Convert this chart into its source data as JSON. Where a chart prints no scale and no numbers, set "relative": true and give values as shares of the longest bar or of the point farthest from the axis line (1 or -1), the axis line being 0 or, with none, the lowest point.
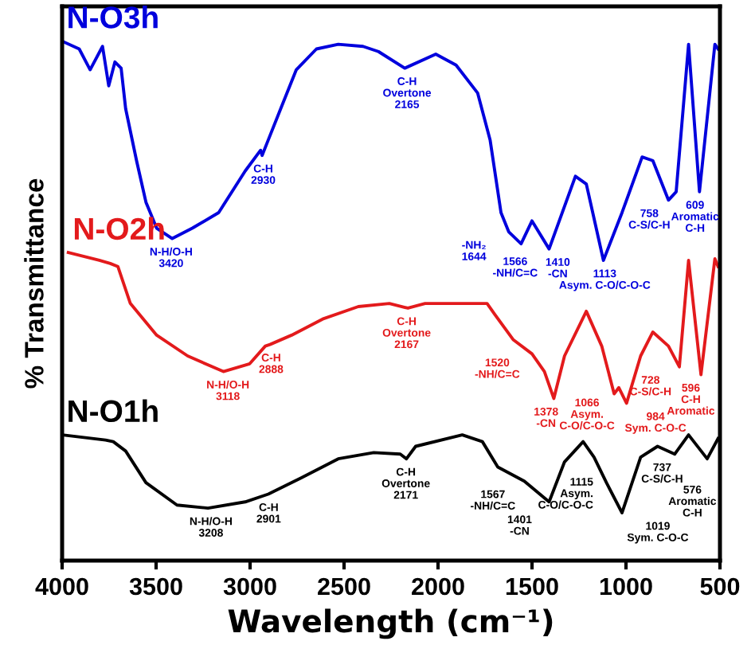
{
  "chart_data": {
    "type": "line",
    "relative": true,
    "xlabel": "Wavelength (cm⁻¹)",
    "ylabel": "% Transmittance",
    "xlim": [
      4000,
      500
    ],
    "xticks": [
      4000,
      3500,
      3000,
      2500,
      2000,
      1500,
      1000,
      500
    ],
    "legend": false,
    "grid": false,
    "marker": "none",
    "line_style": "solid",
    "series": [
      {
        "name": "N-O3h",
        "color": "#0000dd",
        "x": [
          4000,
          3909,
          3851,
          3785,
          3752,
          3719,
          3686,
          3662,
          3604,
          3554,
          3497,
          3414,
          3307,
          3167,
          3026,
          2944,
          2936,
          2903,
          2837,
          2754,
          2647,
          2531,
          2399,
          2317,
          2177,
          2012,
          1904,
          1789,
          1723,
          1665,
          1624,
          1558,
          1500,
          1409,
          1269,
          1211,
          1120,
          1021,
          914,
          857,
          774,
          733,
          667,
          609,
          527,
          510
        ],
        "values": [
          1.0,
          0.985,
          0.945,
          0.99,
          0.914,
          0.96,
          0.948,
          0.87,
          0.77,
          0.69,
          0.64,
          0.62,
          0.64,
          0.67,
          0.75,
          0.79,
          0.78,
          0.81,
          0.87,
          0.945,
          0.985,
          0.994,
          0.99,
          0.98,
          0.948,
          0.975,
          0.954,
          0.9,
          0.81,
          0.67,
          0.633,
          0.61,
          0.654,
          0.6,
          0.74,
          0.725,
          0.578,
          0.67,
          0.777,
          0.77,
          0.694,
          0.71,
          0.994,
          0.71,
          0.994,
          0.985
        ]
      },
      {
        "name": "N-O2h",
        "color": "#e31a1c",
        "x": [
          3967,
          3802,
          3744,
          3703,
          3637,
          3497,
          3332,
          3142,
          3002,
          2919,
          2894,
          2779,
          2614,
          2424,
          2259,
          2160,
          2069,
          1739,
          1698,
          1599,
          1500,
          1434,
          1384,
          1327,
          1211,
          1129,
          1063,
          1038,
          997,
          922,
          857,
          774,
          716,
          667,
          601,
          527,
          510
        ],
        "values": [
          0.593,
          0.578,
          0.572,
          0.566,
          0.495,
          0.434,
          0.394,
          0.364,
          0.379,
          0.413,
          0.416,
          0.434,
          0.465,
          0.489,
          0.495,
          0.486,
          0.495,
          0.495,
          0.474,
          0.425,
          0.398,
          0.364,
          0.312,
          0.394,
          0.48,
          0.413,
          0.321,
          0.333,
          0.303,
          0.394,
          0.44,
          0.413,
          0.373,
          0.578,
          0.358,
          0.581,
          0.566
        ]
      },
      {
        "name": "N-O1h",
        "color": "#000000",
        "x": [
          4000,
          3769,
          3728,
          3662,
          3554,
          3389,
          3224,
          3026,
          2903,
          2729,
          2531,
          2342,
          2201,
          2168,
          2119,
          1871,
          1764,
          1682,
          1541,
          1409,
          1327,
          1228,
          1170,
          1104,
          1021,
          922,
          832,
          741,
          667,
          568,
          510
        ],
        "values": [
          0.242,
          0.232,
          0.229,
          0.211,
          0.15,
          0.107,
          0.101,
          0.113,
          0.128,
          0.159,
          0.196,
          0.208,
          0.205,
          0.196,
          0.22,
          0.242,
          0.229,
          0.18,
          0.153,
          0.113,
          0.19,
          0.229,
          0.199,
          0.15,
          0.092,
          0.199,
          0.22,
          0.205,
          0.242,
          0.196,
          0.235
        ]
      }
    ],
    "annotations": [
      {
        "text": "N-H/O-H\n3420",
        "x": 3420,
        "y": 0.62
      },
      {
        "text": "C-H\n2930",
        "x": 2930,
        "y": 0.78
      },
      {
        "text": "C-H\nOvertone\n2165",
        "x": 2165,
        "y": 0.948
      },
      {
        "text": "-NH₂\n1644",
        "x": 1644,
        "y": 0.633
      },
      {
        "text": "1566\n-NH/C=C",
        "x": 1566,
        "y": 0.61
      },
      {
        "text": "1410\n-CN",
        "x": 1410,
        "y": 0.6
      },
      {
        "text": "1113\nAsym. C-O/C-O-C",
        "x": 1113,
        "y": 0.578
      },
      {
        "text": "758\nC-S/C-H",
        "x": 758,
        "y": 0.694
      },
      {
        "text": "609\nAromatic\nC-H",
        "x": 609,
        "y": 0.71
      },
      {
        "text": "N-H/O-H\n3118",
        "x": 3118,
        "y": 0.364
      },
      {
        "text": "C-H\n2888",
        "x": 2888,
        "y": 0.416
      },
      {
        "text": "C-H\nOvertone\n2167",
        "x": 2167,
        "y": 0.486
      },
      {
        "text": "1520\n-NH/C=C",
        "x": 1520,
        "y": 0.398
      },
      {
        "text": "1378\n-CN",
        "x": 1378,
        "y": 0.312
      },
      {
        "text": "1066\nAsym.\nC-O/C-O-C",
        "x": 1066,
        "y": 0.321
      },
      {
        "text": "984\nSym. C-O-C",
        "x": 984,
        "y": 0.303
      },
      {
        "text": "728\nC-S/C-H",
        "x": 728,
        "y": 0.373
      },
      {
        "text": "596\nC-H\nAromatic",
        "x": 596,
        "y": 0.358
      },
      {
        "text": "N-H/O-H\n3208",
        "x": 3208,
        "y": 0.101
      },
      {
        "text": "C-H\n2901",
        "x": 2901,
        "y": 0.128
      },
      {
        "text": "C-H\nOvertone\n2171",
        "x": 2171,
        "y": 0.196
      },
      {
        "text": "1567\n-NH/C=C",
        "x": 1567,
        "y": 0.153
      },
      {
        "text": "1401\n-CN",
        "x": 1401,
        "y": 0.113
      },
      {
        "text": "1115\nAsym.\nC-O/C-O-C",
        "x": 1115,
        "y": 0.16
      },
      {
        "text": "1019\nSym. C-O-C",
        "x": 1019,
        "y": 0.092
      },
      {
        "text": "737\nC-S/C-H",
        "x": 737,
        "y": 0.205
      },
      {
        "text": "576\nAromatic\nC-H",
        "x": 576,
        "y": 0.196
      }
    ]
  }
}
